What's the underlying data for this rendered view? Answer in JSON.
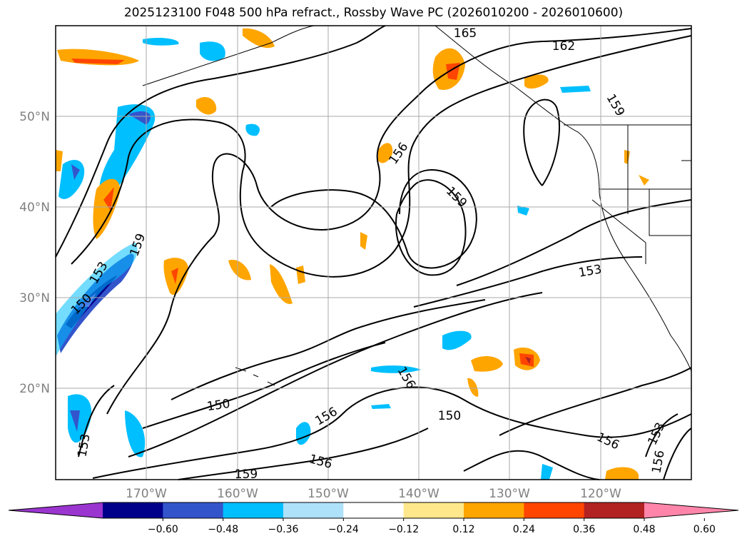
{
  "title": "2025123100 F048 500 hPa refract., Rossby Wave PC (2026010200 - 2026010600)",
  "map": {
    "lat_labels": [
      "50°N",
      "40°N",
      "30°N",
      "20°N"
    ],
    "lon_labels": [
      "170°W",
      "160°W",
      "150°W",
      "140°W",
      "130°W",
      "120°W"
    ],
    "contour_labels": [
      "165",
      "162",
      "159",
      "156",
      "159",
      "153",
      "159",
      "153",
      "150",
      "156",
      "150",
      "156",
      "150",
      "156",
      "153",
      "153",
      "156",
      "159",
      "156"
    ]
  },
  "colorbar": {
    "ticks": [
      "−0.60",
      "−0.48",
      "−0.36",
      "−0.24",
      "−0.12",
      "0.12",
      "0.24",
      "0.36",
      "0.48",
      "0.60"
    ],
    "colors": [
      "#9a35cf",
      "#00008b",
      "#3355cc",
      "#00bfff",
      "#aee1fa",
      "#ffffff",
      "#ffe88c",
      "#ffa500",
      "#ff4500",
      "#b22222",
      "#ff86aa"
    ]
  }
}
